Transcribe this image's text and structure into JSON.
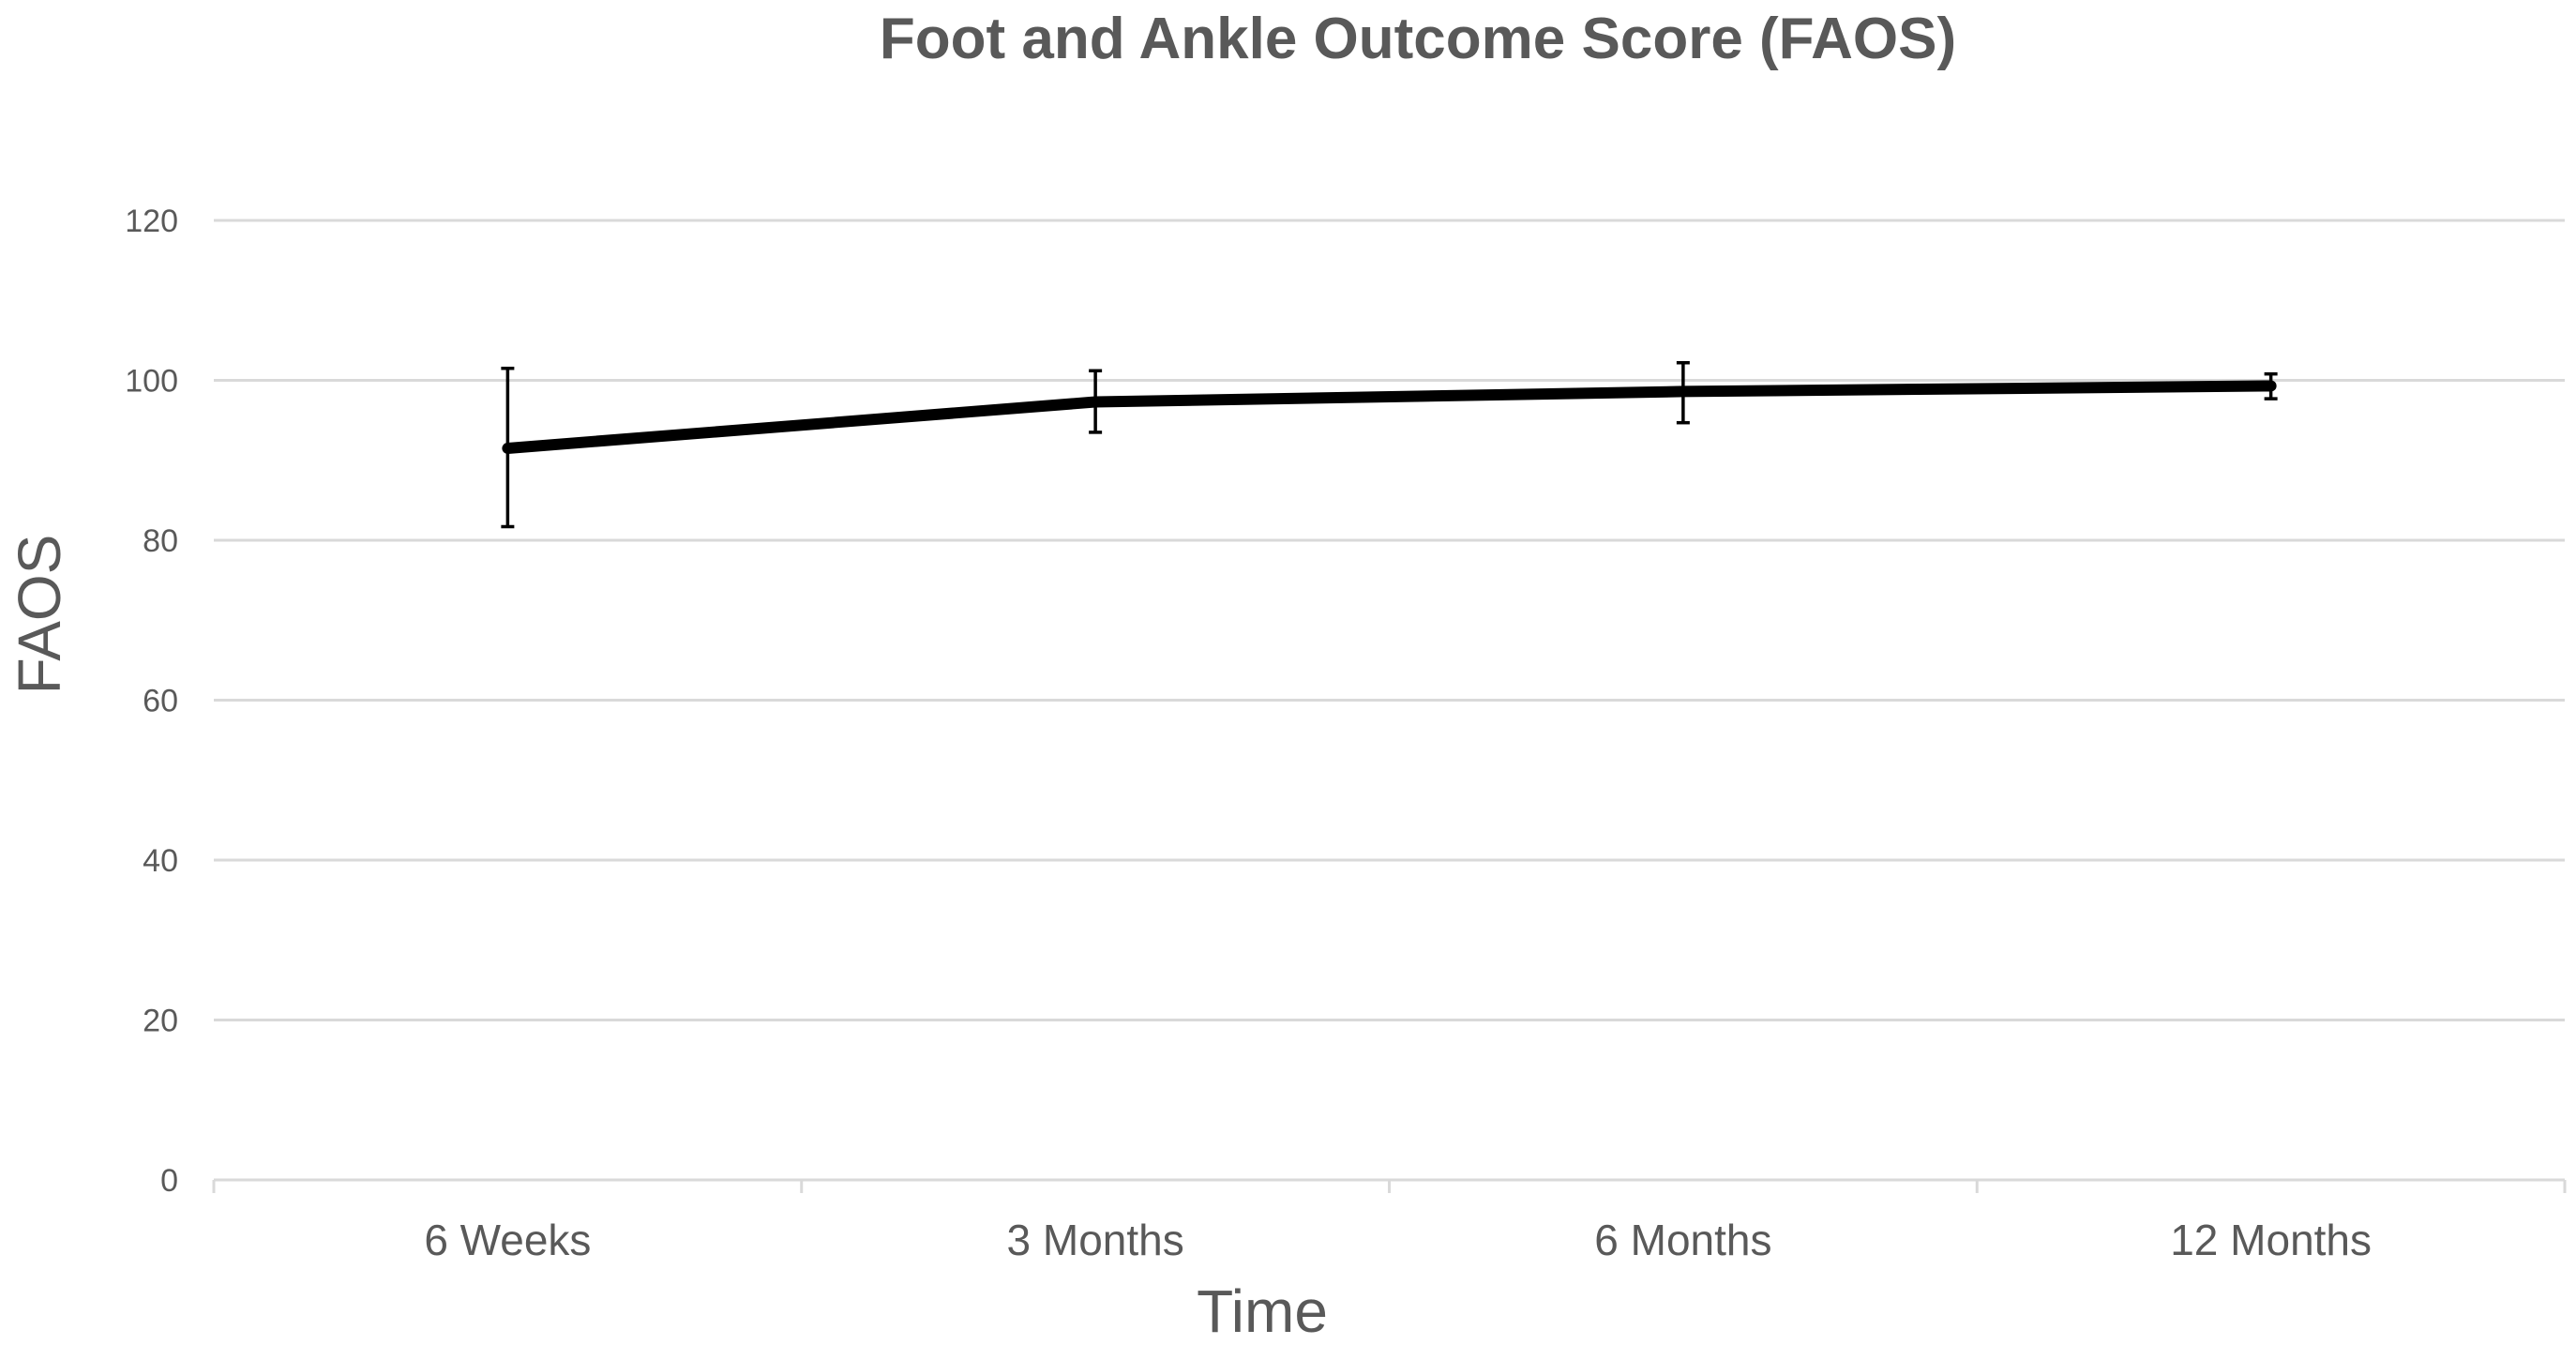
{
  "chart_data": {
    "type": "line",
    "title": "Foot and Ankle Outcome Score (FAOS)",
    "xlabel": "Time",
    "ylabel": "FAOS",
    "categories": [
      "6 Weeks",
      "3 Months",
      "6 Months",
      "12 Months"
    ],
    "series": [
      {
        "values": [
          91.5,
          97.3,
          98.6,
          99.3
        ],
        "error_upper": [
          101.5,
          101.2,
          102.2,
          100.8
        ],
        "error_lower": [
          81.7,
          93.5,
          94.7,
          97.7
        ],
        "color": "#000000"
      }
    ],
    "ylim": [
      0,
      120
    ],
    "yticks": [
      "0",
      "20",
      "40",
      "60",
      "80",
      "100",
      "120"
    ],
    "grid": true,
    "legend": "none",
    "colors": {
      "text": "#595959",
      "grid": "#d9d9d9",
      "line": "#000000"
    }
  }
}
